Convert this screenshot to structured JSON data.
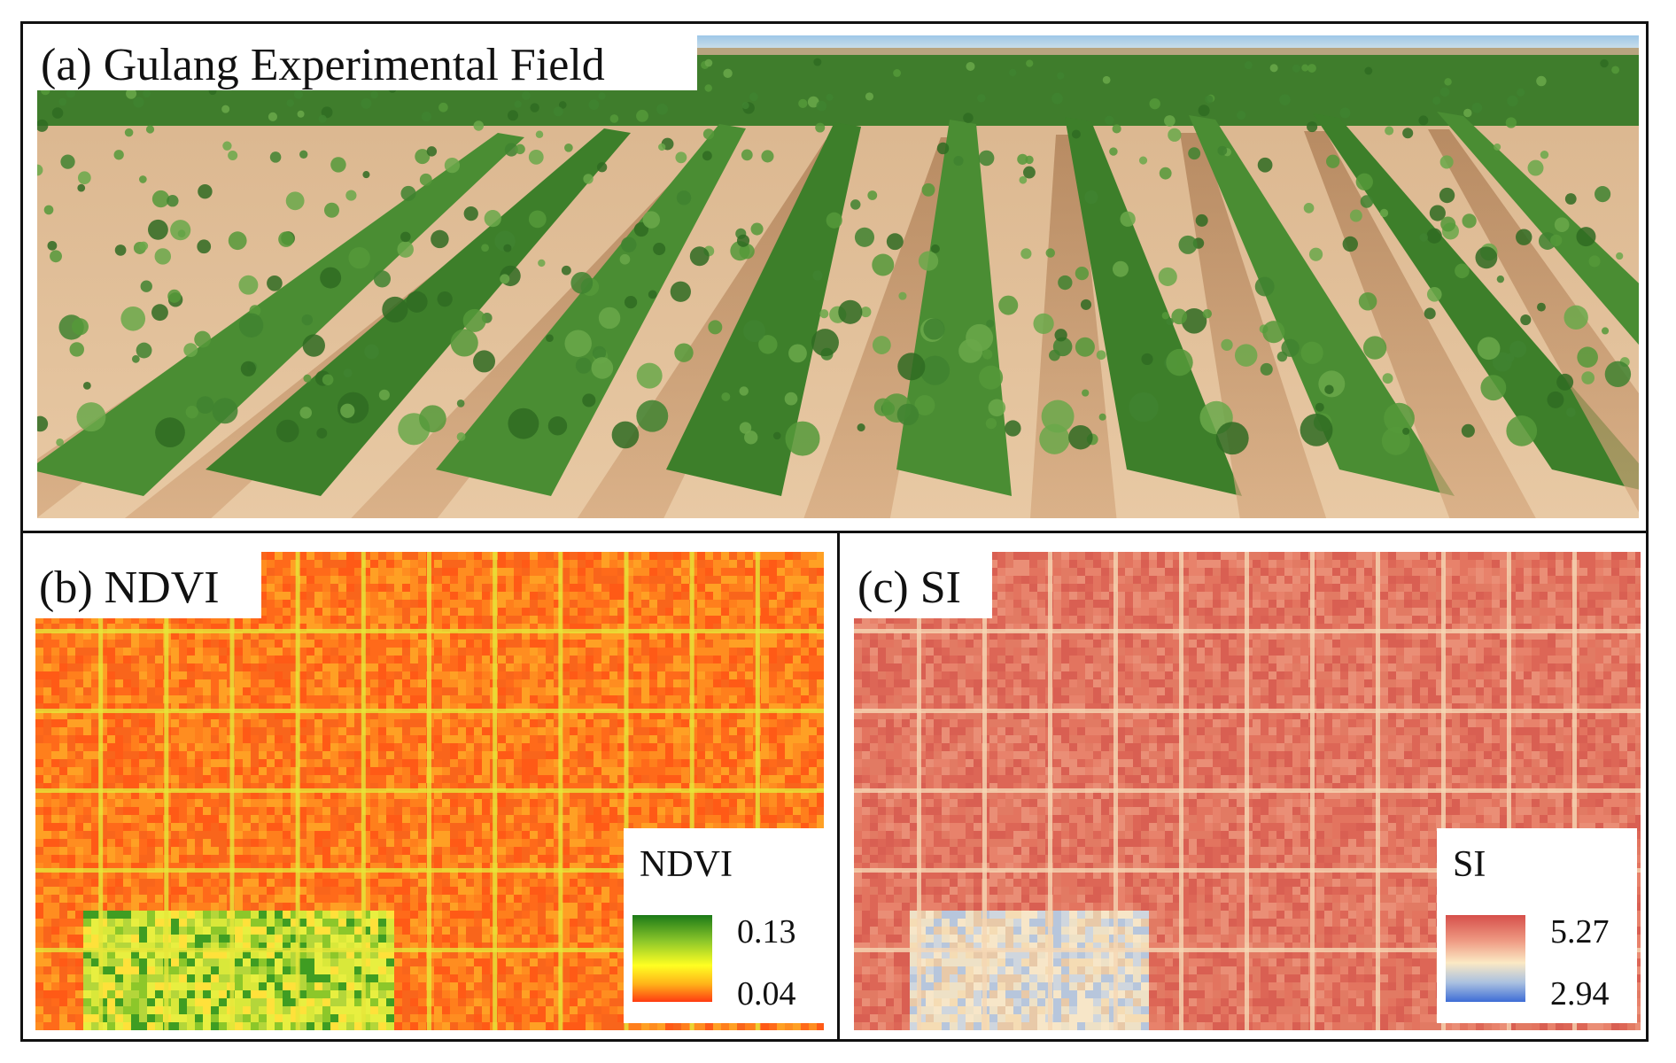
{
  "panels": {
    "a": {
      "label": "(a) Gulang Experimental Field"
    },
    "b": {
      "label": "(b) NDVI",
      "legend_title": "NDVI",
      "legend_max": "0.13",
      "legend_min": "0.04",
      "colors": {
        "high": "#1b7a18",
        "mid": "#ffff22",
        "low": "#ff3b12"
      }
    },
    "c": {
      "label": "(c) SI",
      "legend_title": "SI",
      "legend_max": "5.27",
      "legend_min": "2.94",
      "colors": {
        "high": "#d64f4a",
        "mid": "#fbe9c4",
        "low": "#3e6dd6"
      }
    }
  }
}
